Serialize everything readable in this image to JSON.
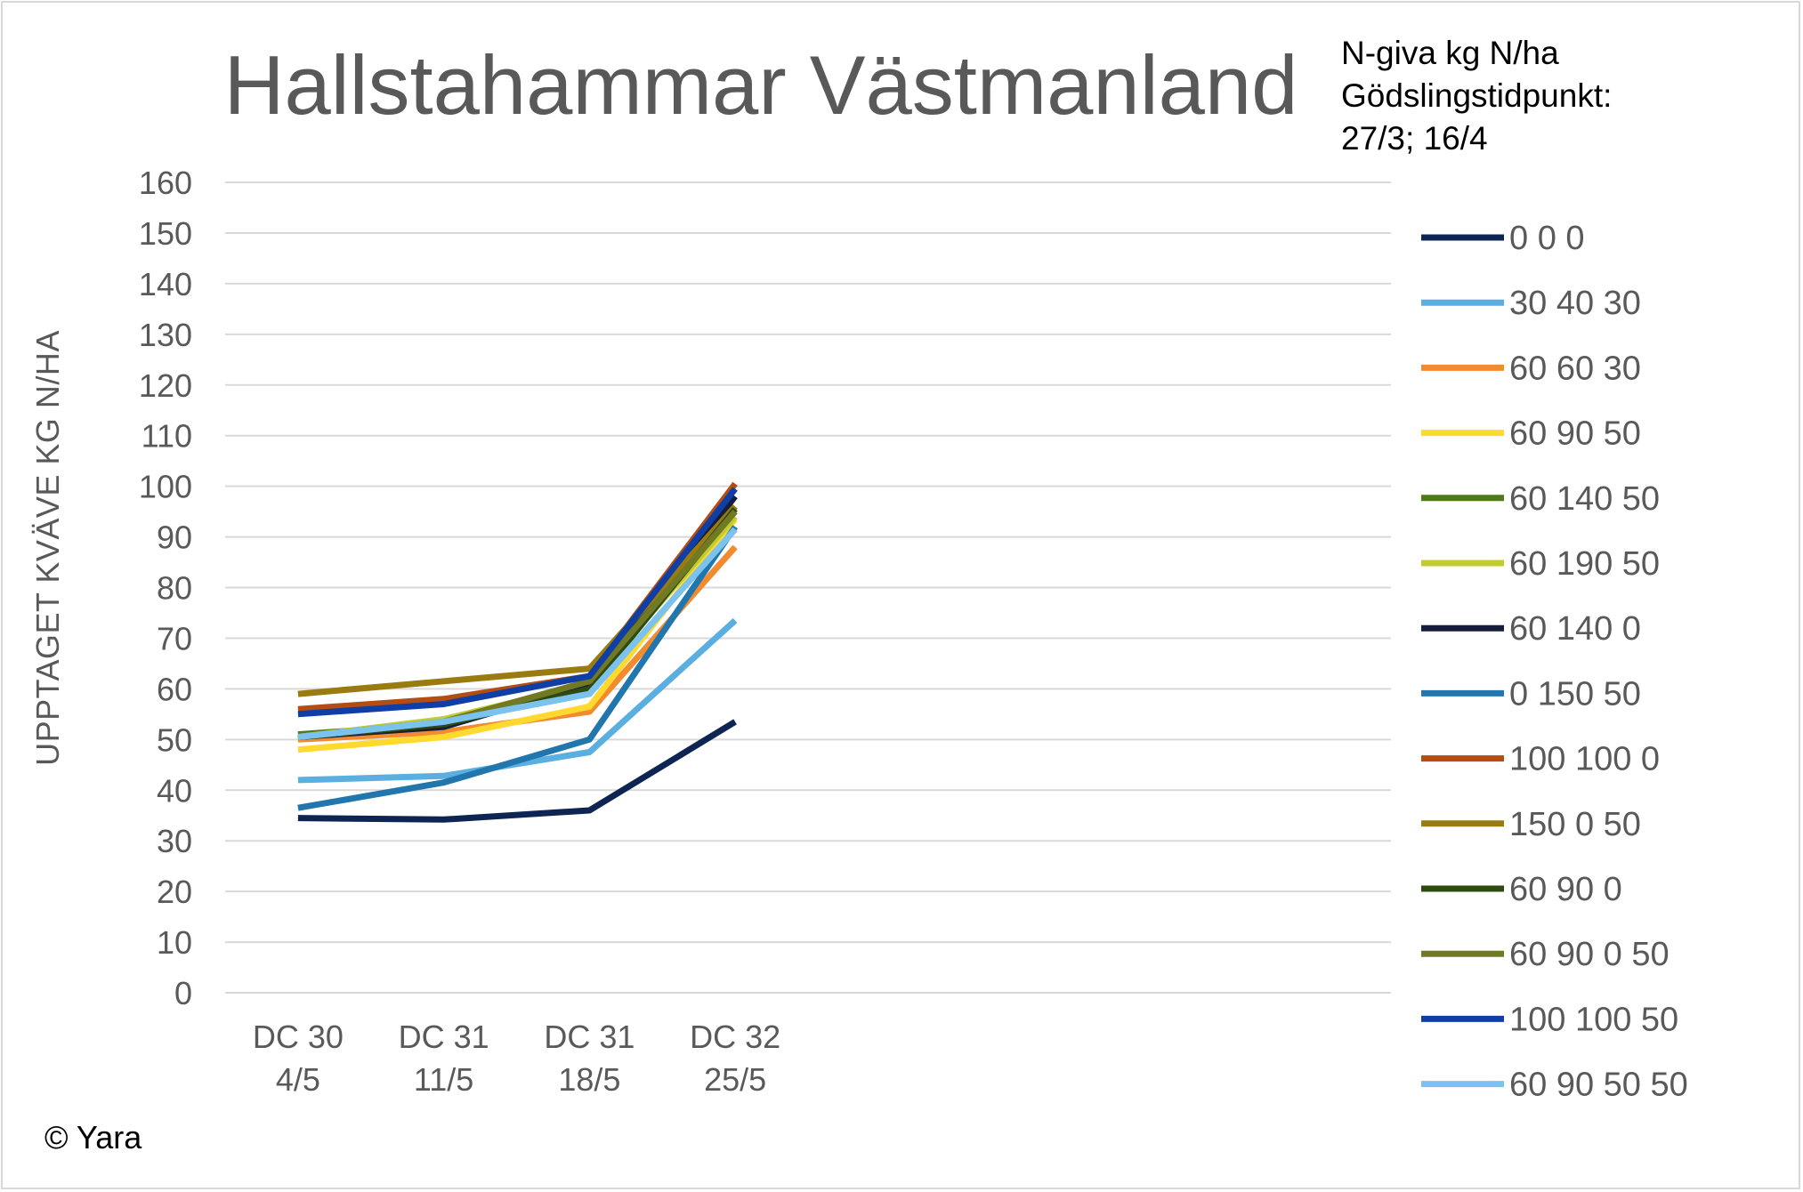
{
  "chart_data": {
    "type": "line",
    "title": "Hallstahammar Västmanland",
    "note_lines": [
      "N-giva kg N/ha",
      "Gödslingstidpunkt:",
      "27/3; 16/4"
    ],
    "ylabel": "UPPTAGET KVÄVE KG N/HA",
    "xlabel": "",
    "ylim": [
      0,
      160
    ],
    "y_step": 10,
    "grid": true,
    "legend_position": "right",
    "x_slots": 8,
    "categories": [
      {
        "line1": "DC 30",
        "line2": "4/5"
      },
      {
        "line1": "DC 31",
        "line2": "11/5"
      },
      {
        "line1": "DC 31",
        "line2": "18/5"
      },
      {
        "line1": "DC 32",
        "line2": "25/5"
      }
    ],
    "series": [
      {
        "name": "0 0 0",
        "color": "#0e2452",
        "values": [
          34.5,
          34.2,
          36.0,
          53.5
        ]
      },
      {
        "name": "30 40 30",
        "color": "#5aafe0",
        "values": [
          42.0,
          42.8,
          47.5,
          73.5
        ]
      },
      {
        "name": "60 60 30",
        "color": "#f28b30",
        "values": [
          50.0,
          51.5,
          55.5,
          88.0
        ]
      },
      {
        "name": "60 90 50",
        "color": "#ffd92e",
        "values": [
          48.0,
          50.5,
          56.5,
          93.5
        ]
      },
      {
        "name": "60 140 50",
        "color": "#4e7a1a",
        "values": [
          51.0,
          53.0,
          61.0,
          96.0
        ]
      },
      {
        "name": "60 190 50",
        "color": "#c1cc2e",
        "values": [
          50.5,
          54.0,
          61.0,
          94.0
        ]
      },
      {
        "name": "60 140 0",
        "color": "#141d3b",
        "values": [
          50.5,
          52.5,
          61.0,
          98.0
        ]
      },
      {
        "name": "0 150 50",
        "color": "#2176ad",
        "values": [
          36.5,
          41.5,
          50.0,
          92.0
        ]
      },
      {
        "name": "100 100 0",
        "color": "#b34d12",
        "values": [
          56.0,
          58.0,
          62.5,
          100.5
        ]
      },
      {
        "name": "150 0 50",
        "color": "#9a7b10",
        "values": [
          59.0,
          61.5,
          64.0,
          96.0
        ]
      },
      {
        "name": "60 90 0",
        "color": "#2e4a10",
        "values": [
          50.5,
          53.0,
          60.0,
          95.5
        ]
      },
      {
        "name": "60 90 0 50",
        "color": "#717a22",
        "values": [
          50.5,
          53.5,
          61.5,
          95.0
        ]
      },
      {
        "name": "100 100 50",
        "color": "#0f3fa6",
        "values": [
          55.0,
          57.0,
          62.5,
          99.5
        ]
      },
      {
        "name": "60 90 50 50",
        "color": "#7cc2ee",
        "values": [
          50.5,
          53.5,
          59.0,
          91.5
        ]
      }
    ]
  },
  "copyright": "© Yara"
}
